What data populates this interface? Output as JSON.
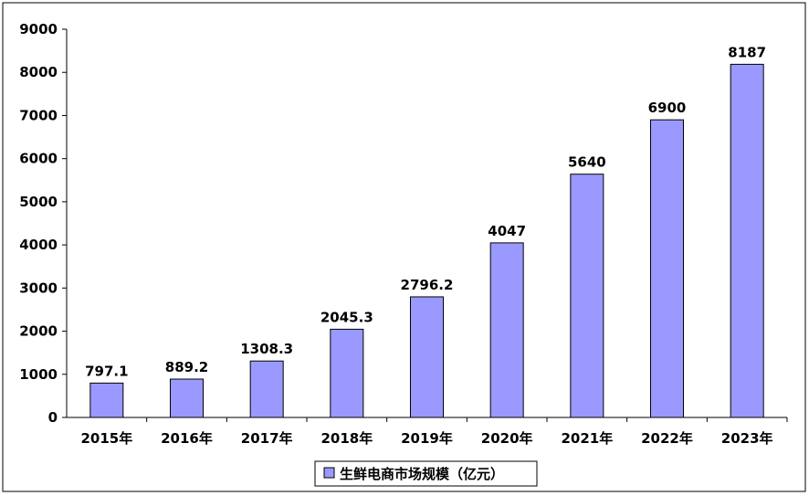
{
  "chart_data": {
    "type": "bar",
    "categories": [
      "2015年",
      "2016年",
      "2017年",
      "2018年",
      "2019年",
      "2020年",
      "2021年",
      "2022年",
      "2023年"
    ],
    "series": [
      {
        "name": "生鲜电商市场规模（亿元）",
        "values": [
          797.1,
          889.2,
          1308.3,
          2045.3,
          2796.2,
          4047,
          5640,
          6900,
          8187
        ],
        "labels": [
          "797.1",
          "889.2",
          "1308.3",
          "2045.3",
          "2796.2",
          "4047",
          "5640",
          "6900",
          "8187"
        ],
        "color": "#9999ff"
      }
    ],
    "y_ticks": [
      "0",
      "1000",
      "2000",
      "3000",
      "4000",
      "5000",
      "6000",
      "7000",
      "8000",
      "9000"
    ],
    "ylim": [
      0,
      9000
    ],
    "grid": false,
    "legend_position": "bottom-center"
  }
}
